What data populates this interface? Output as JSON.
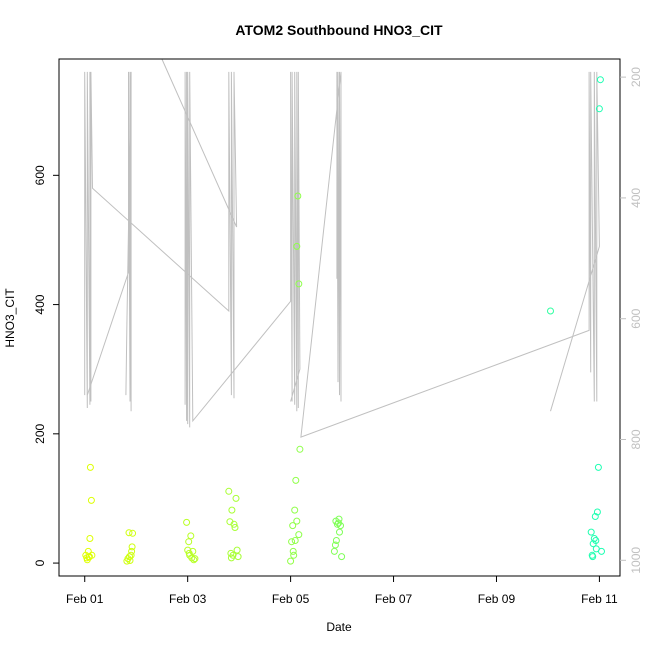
{
  "chart_data": {
    "type": "scatter",
    "title": "ATOM2 Southbound HNO3_CIT",
    "xlabel": "Date",
    "ylabel": "HNO3_CIT",
    "x_ticks": [
      "Feb 01",
      "Feb 03",
      "Feb 05",
      "Feb 07",
      "Feb 09",
      "Feb 11"
    ],
    "x_tick_days": [
      1,
      3,
      5,
      7,
      9,
      11
    ],
    "xlim": [
      0.5,
      11.4
    ],
    "ylim": [
      -20,
      780
    ],
    "y_ticks": [
      0,
      200,
      400,
      600
    ],
    "right_axis": {
      "ticks": [
        200,
        400,
        600,
        800,
        1000
      ],
      "ylim": [
        1026,
        170
      ],
      "reversed": true,
      "color": "#c0c0c0"
    },
    "point_style": "open-circle",
    "series": [
      {
        "color_start": "#e0ff00",
        "color_end": "#1cffb2",
        "points": [
          [
            1.02,
            12
          ],
          [
            1.05,
            5
          ],
          [
            1.07,
            18
          ],
          [
            1.08,
            9
          ],
          [
            1.1,
            38
          ],
          [
            1.11,
            148
          ],
          [
            1.13,
            97
          ],
          [
            1.14,
            12
          ],
          [
            1.04,
            8
          ],
          [
            1.09,
            10
          ],
          [
            1.82,
            3
          ],
          [
            1.84,
            7
          ],
          [
            1.86,
            47
          ],
          [
            1.88,
            4
          ],
          [
            1.9,
            12
          ],
          [
            1.92,
            25
          ],
          [
            1.93,
            46
          ],
          [
            1.91,
            18
          ],
          [
            1.87,
            10
          ],
          [
            2.98,
            63
          ],
          [
            3.0,
            20
          ],
          [
            3.02,
            33
          ],
          [
            3.04,
            12
          ],
          [
            3.06,
            42
          ],
          [
            3.08,
            8
          ],
          [
            3.1,
            18
          ],
          [
            3.12,
            5
          ],
          [
            3.14,
            7
          ],
          [
            3.03,
            15
          ],
          [
            3.8,
            111
          ],
          [
            3.82,
            64
          ],
          [
            3.84,
            15
          ],
          [
            3.86,
            82
          ],
          [
            3.88,
            12
          ],
          [
            3.9,
            60
          ],
          [
            3.92,
            55
          ],
          [
            3.94,
            100
          ],
          [
            3.96,
            20
          ],
          [
            3.98,
            10
          ],
          [
            3.85,
            8
          ],
          [
            5.0,
            3
          ],
          [
            5.02,
            33
          ],
          [
            5.04,
            58
          ],
          [
            5.06,
            12
          ],
          [
            5.08,
            82
          ],
          [
            5.1,
            128
          ],
          [
            5.12,
            490
          ],
          [
            5.14,
            568
          ],
          [
            5.16,
            432
          ],
          [
            5.18,
            176
          ],
          [
            5.12,
            65
          ],
          [
            5.16,
            44
          ],
          [
            5.05,
            18
          ],
          [
            5.09,
            35
          ],
          [
            5.85,
            18
          ],
          [
            5.87,
            28
          ],
          [
            5.89,
            35
          ],
          [
            5.91,
            60
          ],
          [
            5.93,
            62
          ],
          [
            5.95,
            48
          ],
          [
            5.97,
            58
          ],
          [
            5.99,
            10
          ],
          [
            5.88,
            65
          ],
          [
            5.94,
            68
          ],
          [
            10.05,
            390
          ],
          [
            10.84,
            48
          ],
          [
            10.86,
            12
          ],
          [
            10.88,
            30
          ],
          [
            10.9,
            38
          ],
          [
            10.92,
            72
          ],
          [
            10.94,
            22
          ],
          [
            10.96,
            79
          ],
          [
            10.98,
            148
          ],
          [
            11.0,
            703
          ],
          [
            11.02,
            748
          ],
          [
            11.04,
            18
          ],
          [
            10.87,
            10
          ],
          [
            10.93,
            35
          ]
        ]
      }
    ],
    "background_line": {
      "color": "#c0c0c0",
      "segments": [
        [
          [
            1.0,
            260
          ],
          [
            1.0,
            760
          ],
          [
            1.05,
            240
          ],
          [
            1.05,
            760
          ],
          [
            1.1,
            245
          ],
          [
            1.1,
            760
          ],
          [
            1.12,
            250
          ],
          [
            1.12,
            760
          ],
          [
            1.15,
            580
          ],
          [
            3.8,
            390
          ],
          [
            3.8,
            760
          ],
          [
            3.85,
            260
          ],
          [
            3.85,
            760
          ],
          [
            3.9,
            255
          ],
          [
            3.9,
            760
          ],
          [
            3.95,
            520
          ],
          [
            2.5,
            780
          ]
        ],
        [
          [
            1.05,
            260
          ],
          [
            1.85,
            450
          ],
          [
            1.85,
            760
          ],
          [
            1.88,
            250
          ],
          [
            1.88,
            760
          ],
          [
            1.9,
            235
          ],
          [
            1.9,
            760
          ],
          [
            1.82,
            370
          ],
          [
            1.8,
            260
          ]
        ],
        [
          [
            2.95,
            245
          ],
          [
            2.95,
            760
          ],
          [
            2.98,
            220
          ],
          [
            2.98,
            760
          ],
          [
            3.0,
            215
          ],
          [
            3.0,
            760
          ],
          [
            3.04,
            210
          ],
          [
            3.04,
            760
          ],
          [
            3.1,
            220
          ],
          [
            5.0,
            405
          ],
          [
            5.0,
            760
          ],
          [
            5.03,
            250
          ],
          [
            5.03,
            760
          ],
          [
            5.08,
            245
          ],
          [
            5.08,
            760
          ],
          [
            5.12,
            235
          ],
          [
            5.12,
            760
          ],
          [
            5.15,
            240
          ],
          [
            5.15,
            760
          ],
          [
            5.18,
            300
          ],
          [
            5.0,
            250
          ]
        ],
        [
          [
            5.9,
            440
          ],
          [
            5.9,
            760
          ],
          [
            5.92,
            280
          ],
          [
            5.92,
            760
          ],
          [
            5.95,
            260
          ],
          [
            5.95,
            760
          ],
          [
            5.98,
            250
          ],
          [
            5.98,
            760
          ],
          [
            5.2,
            195
          ],
          [
            10.8,
            360
          ],
          [
            10.8,
            760
          ],
          [
            10.83,
            295
          ],
          [
            10.83,
            760
          ],
          [
            10.9,
            250
          ],
          [
            10.9,
            760
          ],
          [
            10.95,
            250
          ],
          [
            10.95,
            760
          ],
          [
            11.0,
            490
          ],
          [
            10.05,
            235
          ]
        ]
      ]
    }
  }
}
